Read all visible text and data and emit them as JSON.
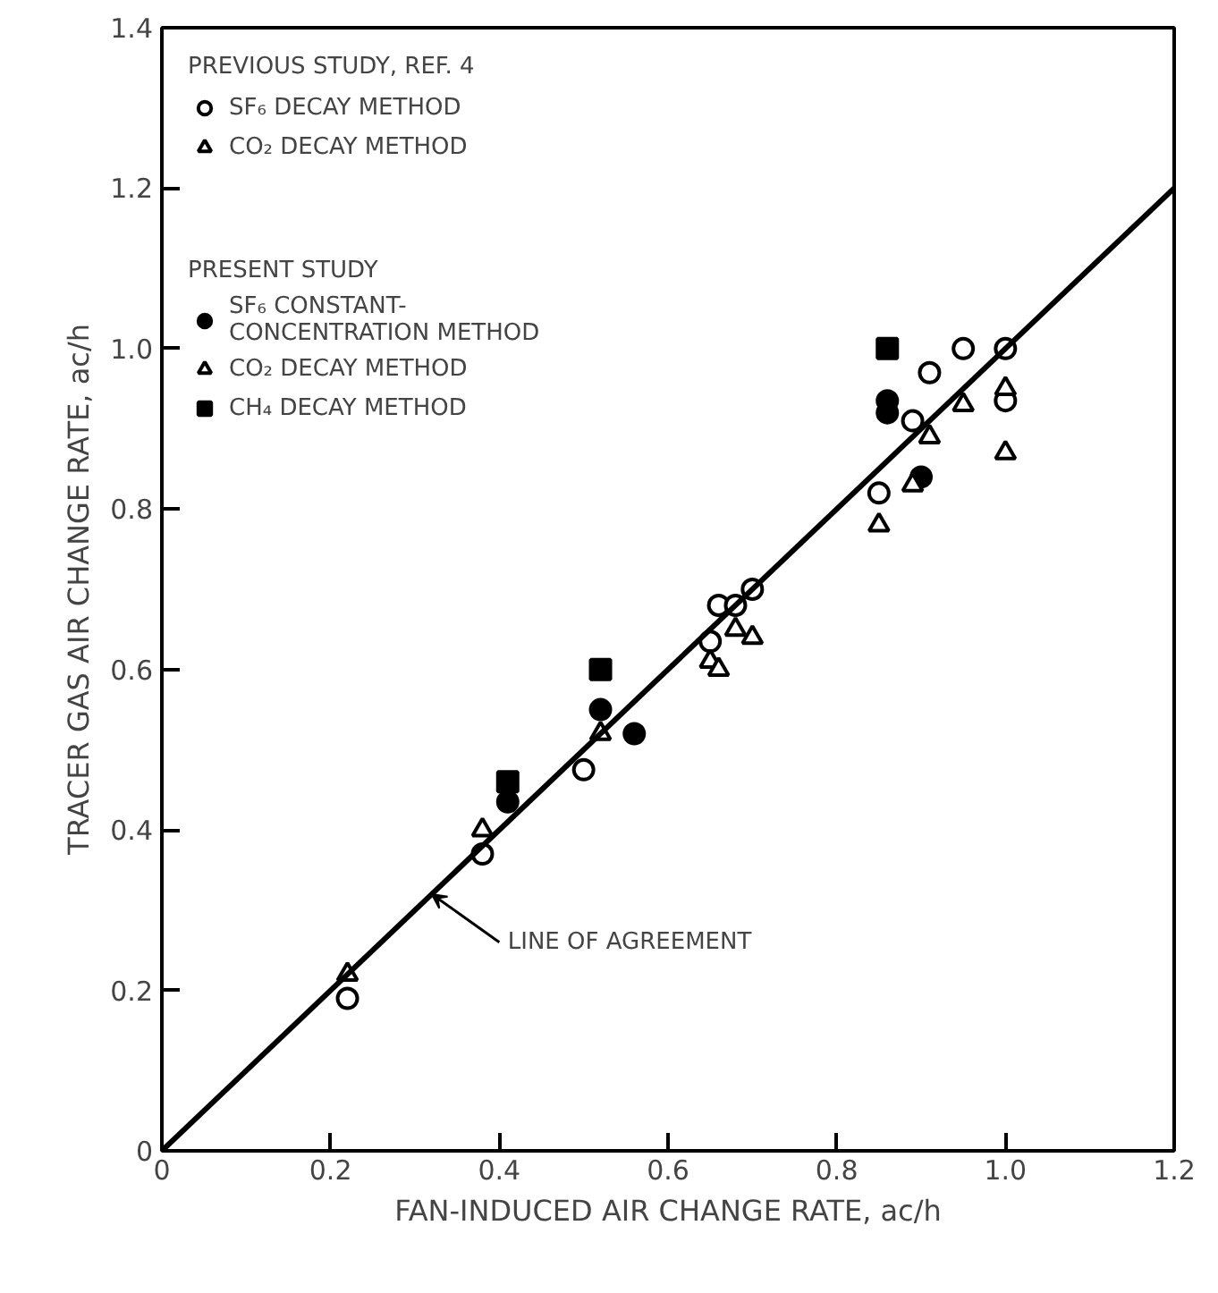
{
  "chart_data": {
    "type": "scatter",
    "xlabel": "FAN-INDUCED AIR CHANGE RATE, ac/h",
    "ylabel": "TRACER GAS AIR CHANGE RATE, ac/h",
    "xlim": [
      0,
      1.2
    ],
    "ylim": [
      0,
      1.4
    ],
    "xticks": [
      0,
      0.2,
      0.4,
      0.6,
      0.8,
      {
        "value": 1,
        "label": "1.0"
      },
      1.2
    ],
    "yticks": [
      0,
      0.2,
      0.4,
      0.6,
      0.8,
      {
        "value": 1,
        "label": "1.0"
      },
      1.2,
      1.4
    ],
    "grid": false,
    "legend": "top left",
    "series": [
      {
        "name": "SF₆ DECAY METHOD",
        "color": "#000000",
        "marker": "circle",
        "x": [
          0.22,
          0.38,
          0.5,
          0.65,
          0.66,
          0.68,
          0.7,
          0.85,
          0.89,
          0.91,
          0.95,
          1.0,
          1.0
        ],
        "values": [
          0.19,
          0.37,
          0.475,
          0.635,
          0.68,
          0.68,
          0.7,
          0.82,
          0.91,
          0.97,
          1.0,
          1.0,
          0.935
        ]
      },
      {
        "name": "CO₂ DECAY METHOD",
        "color": "#000000",
        "marker": "triangle",
        "x": [
          0.22,
          0.38,
          0.65,
          0.66,
          0.68,
          0.7,
          0.85,
          0.91,
          0.95,
          1.0
        ],
        "values": [
          0.22,
          0.4,
          0.61,
          0.6,
          0.65,
          0.64,
          0.78,
          0.89,
          0.93,
          0.95
        ]
      },
      {
        "name": "SF₆ CONSTANT-\nCONCENTRATION METHOD",
        "color": "#000000",
        "marker": "circle",
        "x": [
          0.41,
          0.52,
          0.56,
          0.86,
          0.86,
          0.9
        ],
        "values": [
          0.435,
          0.55,
          0.52,
          0.92,
          0.935,
          0.84
        ]
      },
      {
        "name": "CO₂ DECAY METHOD",
        "color": "#000000",
        "marker": "triangle",
        "x": [
          0.52,
          0.89,
          1.0
        ],
        "values": [
          0.52,
          0.83,
          0.87
        ]
      },
      {
        "name": "CH₄ DECAY METHOD",
        "color": "#000000",
        "marker": "square",
        "x": [
          0.41,
          0.52,
          0.86
        ],
        "values": [
          0.46,
          0.6,
          1.0
        ]
      },
      {
        "type": "line",
        "color": "#000000",
        "x": [
          0,
          1.2
        ],
        "values": [
          0,
          1.2
        ]
      }
    ],
    "annotations": [
      "PREVIOUS STUDY, REF. 4",
      "PRESENT STUDY",
      {
        "text": "LINE OF AGREEMENT",
        "x": 0.32,
        "y": 0.32
      }
    ]
  }
}
